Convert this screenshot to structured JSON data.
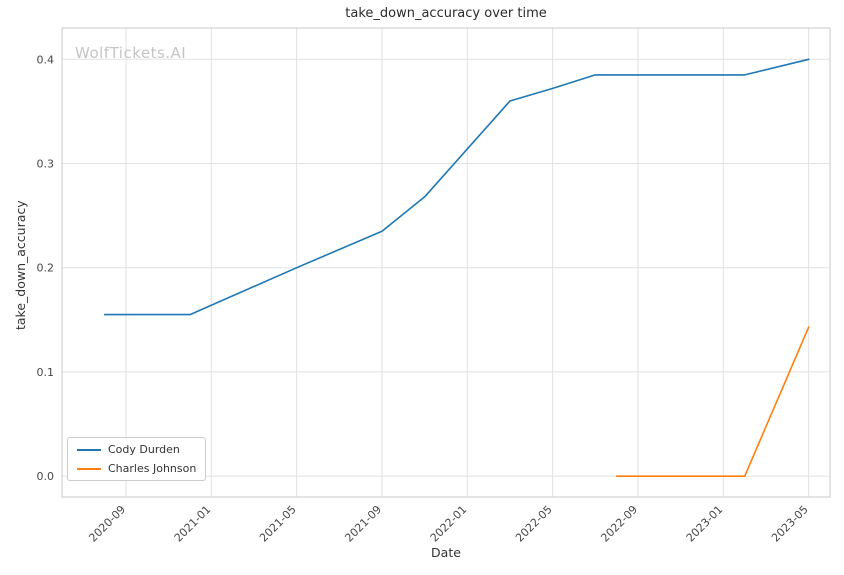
{
  "watermark": "WolfTickets.AI",
  "chart_data": {
    "type": "line",
    "title": "take_down_accuracy over time",
    "xlabel": "Date",
    "ylabel": "take_down_accuracy",
    "grid": true,
    "legend_position": "lower left",
    "x_tick_labels": [
      "2020-09",
      "2021-01",
      "2021-05",
      "2021-09",
      "2022-01",
      "2022-05",
      "2022-09",
      "2023-01",
      "2023-05"
    ],
    "y_ticks": [
      0.0,
      0.1,
      0.2,
      0.3,
      0.4
    ],
    "y_tick_labels": [
      "0.0",
      "0.1",
      "0.2",
      "0.3",
      "0.4"
    ],
    "xlim": [
      "2020-06",
      "2023-06"
    ],
    "ylim": [
      -0.02,
      0.43
    ],
    "series": [
      {
        "name": "Cody Durden",
        "color": "#1f77b4",
        "points": [
          [
            "2020-08",
            0.155
          ],
          [
            "2020-12",
            0.155
          ],
          [
            "2021-05",
            0.2
          ],
          [
            "2021-09",
            0.235
          ],
          [
            "2021-11",
            0.268
          ],
          [
            "2022-03",
            0.36
          ],
          [
            "2022-05",
            0.372
          ],
          [
            "2022-07",
            0.385
          ],
          [
            "2023-02",
            0.385
          ],
          [
            "2023-05",
            0.4
          ]
        ]
      },
      {
        "name": "Charles Johnson",
        "color": "#ff7f0e",
        "points": [
          [
            "2022-08",
            0.0
          ],
          [
            "2023-02",
            0.0
          ],
          [
            "2023-05",
            0.143
          ]
        ]
      }
    ]
  }
}
